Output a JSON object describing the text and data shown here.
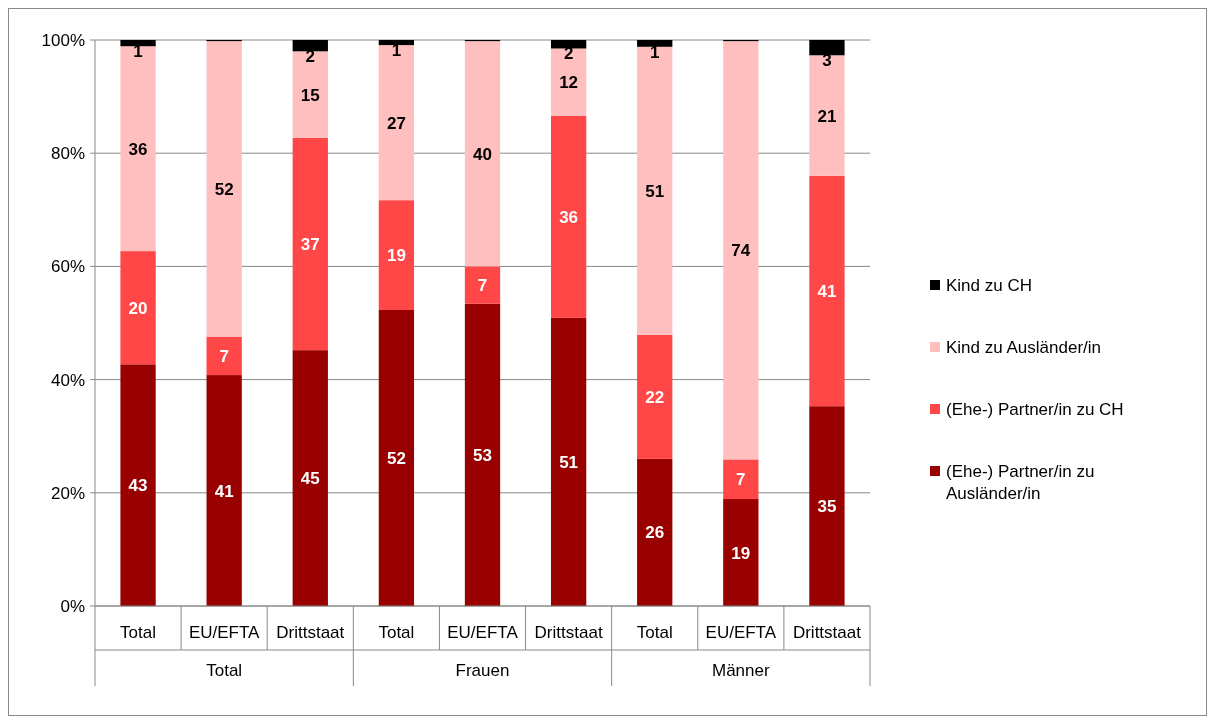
{
  "chart_data": {
    "type": "bar",
    "stacked": true,
    "categories": [
      "Total",
      "EU/EFTA",
      "Drittstaat",
      "Total",
      "EU/EFTA",
      "Drittstaat",
      "Total",
      "EU/EFTA",
      "Drittstaat"
    ],
    "annotations": [
      "Total",
      "Frauen",
      "Männer"
    ],
    "series": [
      {
        "name": "(Ehe-) Partner/in zu Ausländer/in",
        "color": "#990000",
        "values": [
          42.7,
          40.8,
          45.2,
          52.3,
          53.4,
          50.9,
          26.0,
          18.9,
          35.3
        ],
        "value_labels": [
          "43",
          "41",
          "45",
          "52",
          "53",
          "51",
          "26",
          "19",
          "35"
        ]
      },
      {
        "name": "(Ehe-) Partner/in zu CH",
        "color": "#ff4747",
        "values": [
          20.0,
          6.8,
          37.5,
          19.4,
          6.6,
          35.7,
          21.9,
          7.0,
          40.7
        ],
        "value_labels": [
          "20",
          "7",
          "37",
          "19",
          "7",
          "36",
          "22",
          "7",
          "41"
        ]
      },
      {
        "name": "Kind zu Ausländer/in",
        "color": "#ffbfbf",
        "values": [
          36.2,
          52.2,
          15.3,
          27.4,
          39.8,
          11.9,
          50.9,
          73.9,
          21.3
        ],
        "value_labels": [
          "36",
          "52",
          "15",
          "27",
          "40",
          "12",
          "51",
          "74",
          "21"
        ]
      },
      {
        "name": "Kind zu CH",
        "color": "#000000",
        "values": [
          1.1,
          0.2,
          2.0,
          0.9,
          0.2,
          1.5,
          1.2,
          0.2,
          2.7
        ],
        "value_labels": [
          "1",
          null,
          "2",
          "1",
          null,
          "2",
          "1",
          null,
          "3"
        ]
      }
    ],
    "ylim": [
      0,
      100
    ],
    "yticks": [
      {
        "value": 0,
        "label": "0%"
      },
      {
        "value": 20,
        "label": "20%"
      },
      {
        "value": 40,
        "label": "40%"
      },
      {
        "value": 60,
        "label": "60%"
      },
      {
        "value": 80,
        "label": "80%"
      },
      {
        "value": 100,
        "label": "100%"
      }
    ],
    "grid": "y",
    "legend": "right"
  }
}
